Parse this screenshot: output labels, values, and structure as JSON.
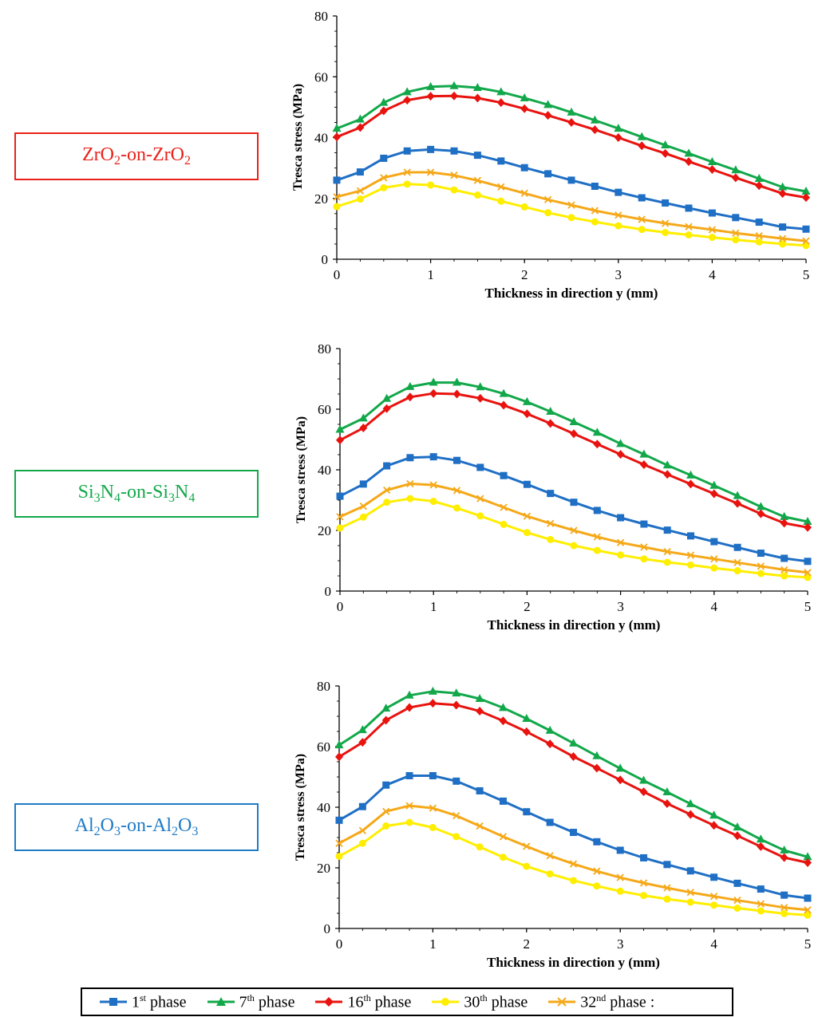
{
  "materials": [
    {
      "prefix": "ZrO",
      "sub1": "2",
      "mid": "-on-ZrO",
      "sub2": "2",
      "color": "#e8221a"
    },
    {
      "prefix": "Si",
      "sub1": "3",
      "mid": "N",
      "sub1b": "4",
      "mid2": "-on-Si",
      "sub2": "3",
      "mid3": "N",
      "sub2b": "4",
      "color": "#12a84a"
    },
    {
      "prefix": "Al",
      "sub1": "2",
      "mid": "O",
      "sub1b": "3",
      "mid2": "-on-Al",
      "sub2": "2",
      "mid3": "O",
      "sub2b": "3",
      "color": "#1f7bc6"
    }
  ],
  "legend": [
    {
      "num": "1",
      "sup": "st",
      "text": " phase",
      "color": "#1f6fc5",
      "marker": "square"
    },
    {
      "num": "7",
      "sup": "th",
      "text": " phase",
      "color": "#12a84a",
      "marker": "triangle"
    },
    {
      "num": "16",
      "sup": "th",
      "text": " phase",
      "color": "#e8130f",
      "marker": "diamond"
    },
    {
      "num": "30",
      "sup": "th",
      "text": " phase",
      "color": "#ffee00",
      "marker": "circle"
    },
    {
      "num": "32",
      "sup": "nd",
      "text": " phase :",
      "color": "#f5a818",
      "marker": "x"
    }
  ],
  "chart_data": [
    {
      "type": "line",
      "xlabel": "Thickness in direction y (mm)",
      "ylabel": "Tresca stress (MPa)",
      "xlim": [
        0,
        5
      ],
      "ylim": [
        0,
        80
      ],
      "xticks": [
        "0",
        "1",
        "2",
        "3",
        "4",
        "5"
      ],
      "yticks": [
        "0",
        "20",
        "40",
        "60",
        "80"
      ],
      "x": [
        0,
        0.25,
        0.5,
        0.75,
        1,
        1.25,
        1.5,
        1.75,
        2,
        2.25,
        2.5,
        2.75,
        3,
        3.25,
        3.5,
        3.75,
        4,
        4.25,
        4.5,
        4.75,
        5
      ],
      "series": [
        {
          "name": "1st phase",
          "color": "#1f6fc5",
          "marker": "square",
          "values": [
            26,
            28.7,
            33.2,
            35.6,
            36.1,
            35.6,
            34.2,
            32.3,
            30.1,
            28.1,
            26,
            24,
            22,
            20.2,
            18.5,
            16.8,
            15.2,
            13.7,
            12.2,
            10.6,
            9.9
          ]
        },
        {
          "name": "7th phase",
          "color": "#12a84a",
          "marker": "triangle",
          "values": [
            43,
            46,
            51.5,
            55,
            56.7,
            57,
            56.4,
            55,
            53,
            50.8,
            48.3,
            45.7,
            43,
            40.2,
            37.5,
            34.8,
            32,
            29.3,
            26.5,
            23.7,
            22.3
          ]
        },
        {
          "name": "16th phase",
          "color": "#e8130f",
          "marker": "diamond",
          "values": [
            40.2,
            43.3,
            48.8,
            52.3,
            53.6,
            53.7,
            53,
            51.5,
            49.5,
            47.3,
            45,
            42.6,
            40,
            37.3,
            34.8,
            32.1,
            29.5,
            26.8,
            24.2,
            21.6,
            20.3
          ]
        },
        {
          "name": "30th phase",
          "color": "#ffee00",
          "marker": "circle",
          "values": [
            17.3,
            19.8,
            23.5,
            24.7,
            24.4,
            22.8,
            21.1,
            19.1,
            17.2,
            15.3,
            13.7,
            12.3,
            11,
            9.8,
            8.8,
            8,
            7.2,
            6.4,
            5.7,
            5,
            4.5
          ]
        },
        {
          "name": "32nd phase",
          "color": "#f5a818",
          "marker": "x",
          "values": [
            20.5,
            22.5,
            26.8,
            28.6,
            28.6,
            27.6,
            25.9,
            23.8,
            21.7,
            19.6,
            17.8,
            16,
            14.5,
            13.1,
            11.8,
            10.7,
            9.7,
            8.6,
            7.7,
            6.8,
            6
          ]
        }
      ]
    },
    {
      "type": "line",
      "xlabel": "Thickness in direction y (mm)",
      "ylabel": "Tresca stress (MPa)",
      "xlim": [
        0,
        5
      ],
      "ylim": [
        0,
        80
      ],
      "xticks": [
        "0",
        "1",
        "2",
        "3",
        "4",
        "5"
      ],
      "yticks": [
        "0",
        "20",
        "40",
        "60",
        "80"
      ],
      "x": [
        0,
        0.25,
        0.5,
        0.75,
        1,
        1.25,
        1.5,
        1.75,
        2,
        2.25,
        2.5,
        2.75,
        3,
        3.25,
        3.5,
        3.75,
        4,
        4.25,
        4.5,
        4.75,
        5
      ],
      "series": [
        {
          "name": "1st phase",
          "color": "#1f6fc5",
          "marker": "square",
          "values": [
            31.3,
            35.3,
            41.3,
            44,
            44.3,
            43.1,
            40.8,
            38.1,
            35.2,
            32.2,
            29.3,
            26.6,
            24.2,
            22.1,
            20.1,
            18.2,
            16.3,
            14.4,
            12.5,
            10.8,
            9.8
          ]
        },
        {
          "name": "7th phase",
          "color": "#12a84a",
          "marker": "triangle",
          "values": [
            53.3,
            57,
            63.5,
            67.4,
            68.8,
            68.8,
            67.3,
            65.1,
            62.4,
            59.2,
            55.8,
            52.3,
            48.6,
            45.1,
            41.5,
            38.2,
            34.8,
            31.4,
            27.8,
            24.5,
            22.9
          ]
        },
        {
          "name": "16th phase",
          "color": "#e8130f",
          "marker": "diamond",
          "values": [
            49.8,
            53.8,
            60.2,
            64,
            65.2,
            65,
            63.6,
            61.3,
            58.5,
            55.3,
            51.9,
            48.5,
            45.1,
            41.7,
            38.5,
            35.3,
            32.1,
            28.9,
            25.5,
            22.4,
            21
          ]
        },
        {
          "name": "30th phase",
          "color": "#ffee00",
          "marker": "circle",
          "values": [
            20.8,
            24.4,
            29.3,
            30.5,
            29.6,
            27.4,
            24.8,
            22,
            19.3,
            17,
            15,
            13.4,
            11.9,
            10.6,
            9.5,
            8.6,
            7.6,
            6.7,
            5.8,
            5,
            4.5
          ]
        },
        {
          "name": "32nd phase",
          "color": "#f5a818",
          "marker": "x",
          "values": [
            24.5,
            28,
            33.3,
            35.4,
            35,
            33.2,
            30.5,
            27.6,
            24.7,
            22.3,
            20,
            17.9,
            16,
            14.5,
            13,
            11.8,
            10.6,
            9.4,
            8.2,
            7,
            6.1
          ]
        }
      ]
    },
    {
      "type": "line",
      "xlabel": "Thickness in direction y (mm)",
      "ylabel": "Tresca stress (MPa)",
      "xlim": [
        0,
        5
      ],
      "ylim": [
        0,
        80
      ],
      "xticks": [
        "0",
        "1",
        "2",
        "3",
        "4",
        "5"
      ],
      "yticks": [
        "0",
        "20",
        "40",
        "60",
        "80"
      ],
      "x": [
        0,
        0.25,
        0.5,
        0.75,
        1,
        1.25,
        1.5,
        1.75,
        2,
        2.25,
        2.5,
        2.75,
        3,
        3.25,
        3.5,
        3.75,
        4,
        4.25,
        4.5,
        4.75,
        5
      ],
      "series": [
        {
          "name": "1st phase",
          "color": "#1f6fc5",
          "marker": "square",
          "values": [
            35.7,
            40.2,
            47.3,
            50.4,
            50.4,
            48.6,
            45.4,
            42,
            38.5,
            35,
            31.7,
            28.6,
            25.8,
            23.3,
            21.1,
            19,
            16.9,
            14.9,
            13,
            11,
            10
          ]
        },
        {
          "name": "7th phase",
          "color": "#12a84a",
          "marker": "triangle",
          "values": [
            60.5,
            65.5,
            72.6,
            76.9,
            78.2,
            77.6,
            75.8,
            72.8,
            69.2,
            65.3,
            61.1,
            56.9,
            52.8,
            48.8,
            45,
            41.1,
            37.3,
            33.4,
            29.4,
            25.8,
            23.6
          ]
        },
        {
          "name": "16th phase",
          "color": "#e8130f",
          "marker": "diamond",
          "values": [
            56.6,
            61.4,
            68.7,
            72.9,
            74.3,
            73.7,
            71.7,
            68.5,
            64.9,
            60.9,
            56.7,
            52.9,
            49,
            45.1,
            41.2,
            37.6,
            34,
            30.6,
            27,
            23.4,
            21.7
          ]
        },
        {
          "name": "30th phase",
          "color": "#ffee00",
          "marker": "circle",
          "values": [
            23.8,
            28.1,
            33.8,
            35,
            33.3,
            30.3,
            26.9,
            23.5,
            20.5,
            18,
            15.8,
            14,
            12.3,
            10.9,
            9.7,
            8.7,
            7.7,
            6.7,
            5.8,
            4.9,
            4.4
          ]
        },
        {
          "name": "32nd phase",
          "color": "#f5a818",
          "marker": "x",
          "values": [
            28.1,
            32.3,
            38.6,
            40.5,
            39.7,
            37.2,
            33.8,
            30.3,
            27.1,
            24,
            21.3,
            18.9,
            16.8,
            15,
            13.4,
            11.9,
            10.6,
            9.3,
            8.1,
            6.9,
            6.1
          ]
        }
      ]
    }
  ]
}
